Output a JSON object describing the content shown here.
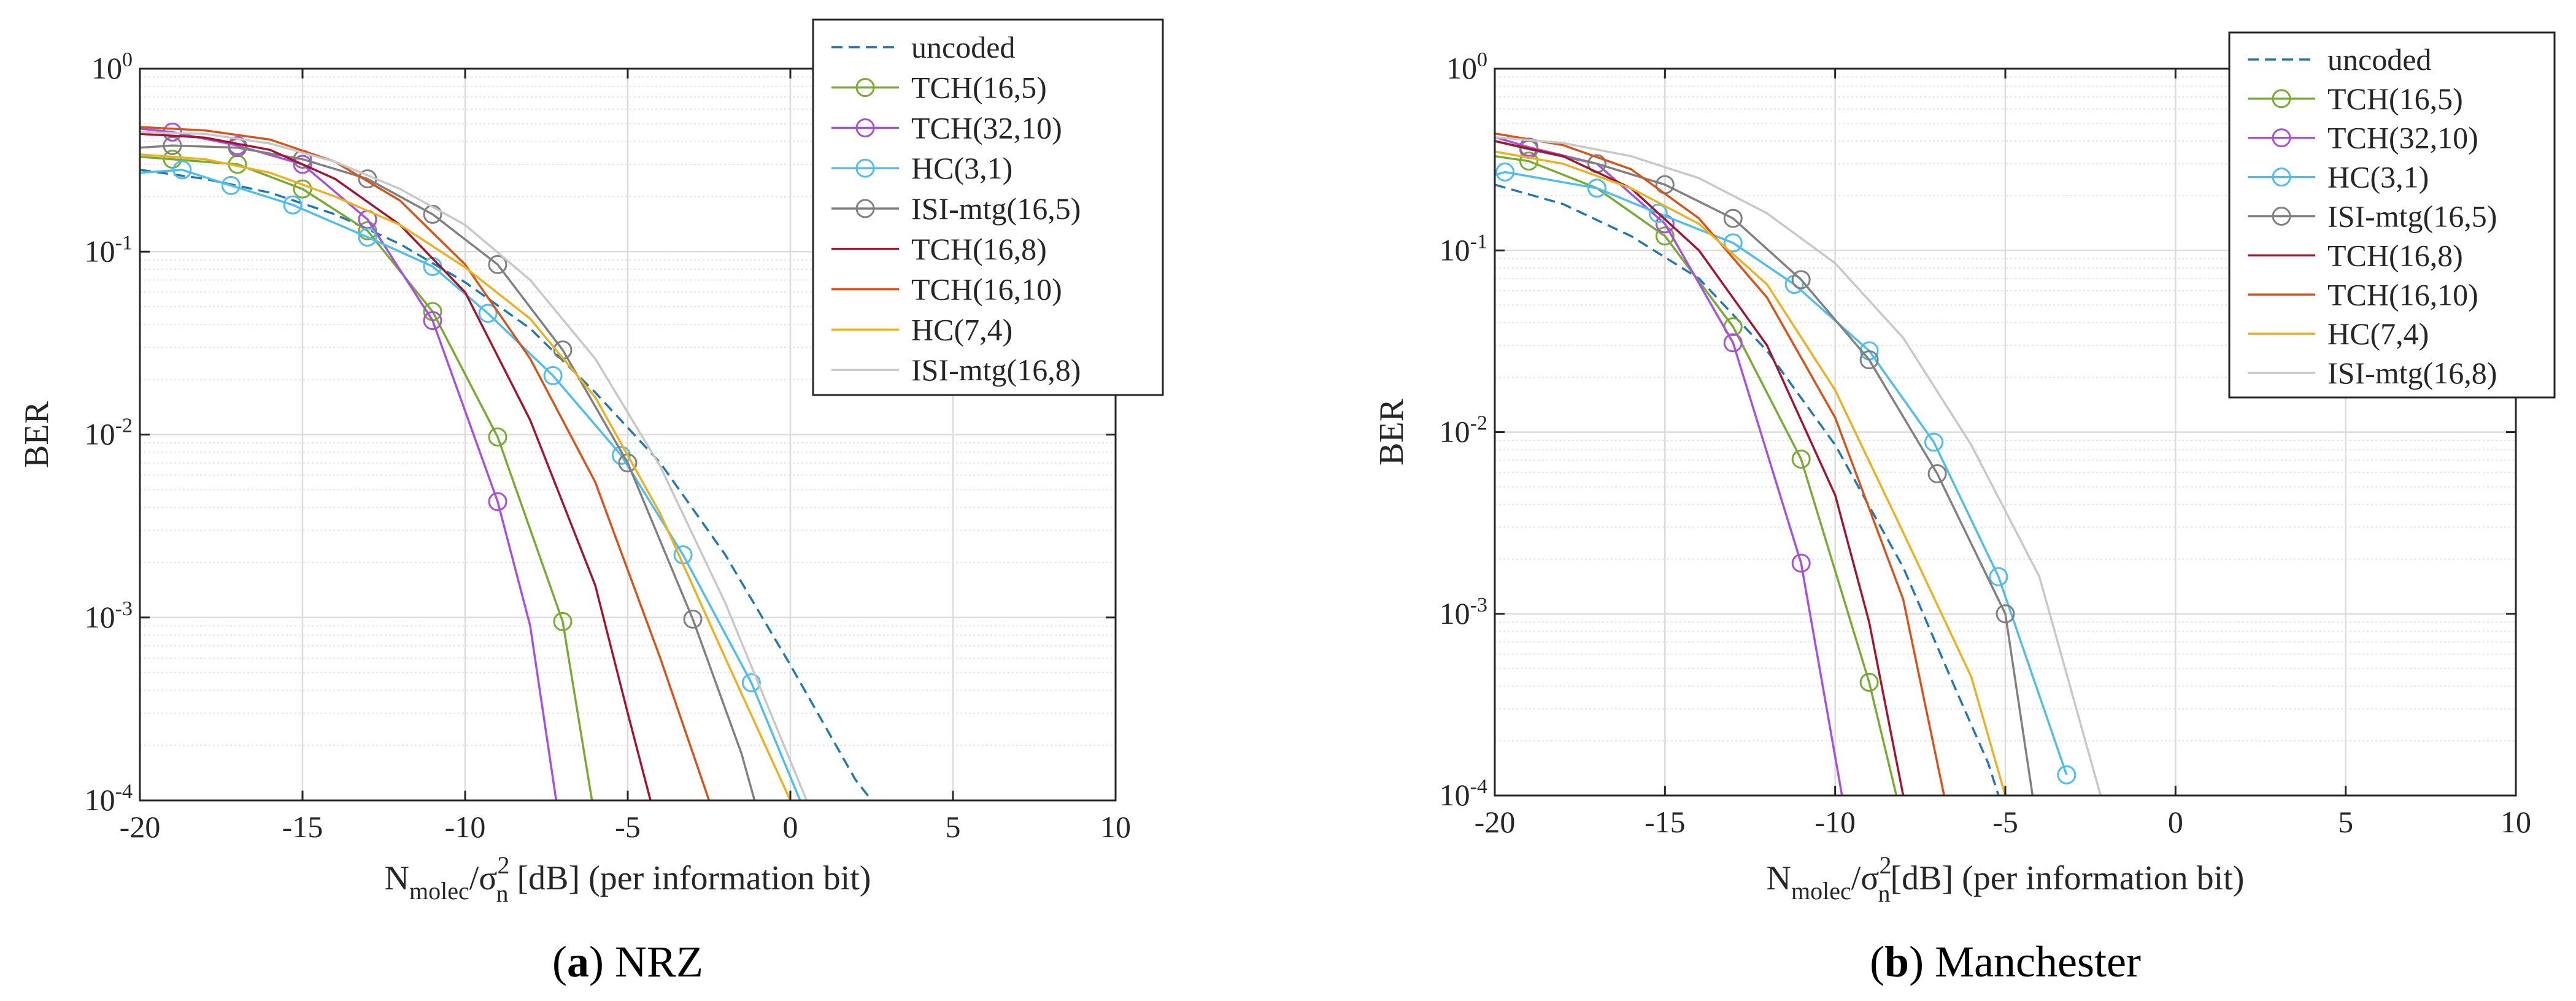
{
  "chart_data": [
    {
      "type": "line",
      "panel_id": "a",
      "caption_letter": "a",
      "caption_text": "NRZ",
      "xlabel_main": "N",
      "xlabel_sub": "molec",
      "xlabel_mid": "/σ",
      "xlabel_sup": "2",
      "xlabel_sub2": "n",
      "xlabel_rest": " [dB] (per information bit)",
      "ylabel": "BER",
      "xlim": [
        -20,
        10
      ],
      "ylim_exp": [
        -4,
        0
      ],
      "xticks": [
        -20,
        -15,
        -10,
        -5,
        0,
        5,
        10
      ],
      "yticks": [
        {
          "base": "10",
          "exp": "0",
          "v": 0
        },
        {
          "base": "10",
          "exp": "-1",
          "v": -1
        },
        {
          "base": "10",
          "exp": "-2",
          "v": -2
        },
        {
          "base": "10",
          "exp": "-3",
          "v": -3
        },
        {
          "base": "10",
          "exp": "-4",
          "v": -4
        }
      ],
      "grid": true,
      "legend_position": "top-right",
      "series": [
        {
          "name": "uncoded",
          "color": "#1f77b4",
          "dash": true,
          "marker": false,
          "x": [
            -20,
            -18,
            -16,
            -14,
            -12,
            -10,
            -8,
            -6,
            -4,
            -2,
            0,
            2,
            2.5
          ],
          "y": [
            0.28,
            0.25,
            0.21,
            0.16,
            0.11,
            0.068,
            0.038,
            0.017,
            0.007,
            0.0022,
            0.00055,
            0.00013,
            0.0001
          ]
        },
        {
          "name": "TCH(16,5)",
          "color": "#77ac30",
          "marker": true,
          "x": [
            -20,
            -19,
            -17,
            -15,
            -13,
            -11,
            -9,
            -7,
            -6.1
          ],
          "y": [
            0.33,
            0.32,
            0.3,
            0.22,
            0.13,
            0.047,
            0.0097,
            0.00095,
            0.0001
          ],
          "mx": [
            -19,
            -17,
            -15,
            -13,
            -11,
            -9,
            -7
          ],
          "my": [
            0.32,
            0.3,
            0.22,
            0.13,
            0.047,
            0.0097,
            0.00095
          ]
        },
        {
          "name": "TCH(32,10)",
          "color": "#a94fe0",
          "marker": true,
          "x": [
            -20,
            -19,
            -17,
            -15,
            -13,
            -11,
            -9,
            -8,
            -7.2
          ],
          "y": [
            0.47,
            0.45,
            0.38,
            0.3,
            0.15,
            0.042,
            0.0043,
            0.0009,
            0.0001
          ],
          "mx": [
            -19,
            -17,
            -15,
            -13,
            -11,
            -9
          ],
          "my": [
            0.45,
            0.38,
            0.3,
            0.15,
            0.042,
            0.0043
          ]
        },
        {
          "name": "HC(3,1)",
          "color": "#4dbeee",
          "marker": true,
          "x": [
            -20,
            -18.7,
            -17.2,
            -15.3,
            -13,
            -11,
            -9.3,
            -7.3,
            -5.2,
            -3.3,
            -1.2,
            0.3
          ],
          "y": [
            0.27,
            0.28,
            0.23,
            0.18,
            0.12,
            0.083,
            0.046,
            0.021,
            0.0077,
            0.0022,
            0.00044,
            0.0001
          ],
          "mx": [
            -18.7,
            -17.2,
            -15.3,
            -13,
            -11,
            -9.3,
            -7.3,
            -5.2,
            -3.3,
            -1.2
          ],
          "my": [
            0.28,
            0.23,
            0.18,
            0.12,
            0.083,
            0.046,
            0.021,
            0.0077,
            0.0022,
            0.00044
          ]
        },
        {
          "name": "ISI-mtg(16,5)",
          "color": "#808080",
          "marker": true,
          "x": [
            -20,
            -19,
            -17,
            -15,
            -13,
            -11,
            -9,
            -7,
            -5,
            -3,
            -1.5,
            -1.1
          ],
          "y": [
            0.37,
            0.38,
            0.37,
            0.32,
            0.25,
            0.16,
            0.085,
            0.029,
            0.007,
            0.00098,
            0.00018,
            0.0001
          ],
          "mx": [
            -19,
            -17,
            -15,
            -13,
            -11,
            -9,
            -7,
            -5,
            -3
          ],
          "my": [
            0.38,
            0.37,
            0.32,
            0.25,
            0.16,
            0.085,
            0.029,
            0.007,
            0.00098
          ]
        },
        {
          "name": "TCH(16,8)",
          "color": "#a2142f",
          "marker": false,
          "x": [
            -20,
            -18,
            -16,
            -14,
            -12,
            -10,
            -8,
            -6,
            -5,
            -4.3
          ],
          "y": [
            0.44,
            0.42,
            0.36,
            0.25,
            0.14,
            0.06,
            0.012,
            0.0015,
            0.0003,
            0.0001
          ]
        },
        {
          "name": "TCH(16,10)",
          "color": "#d95319",
          "marker": false,
          "x": [
            -20,
            -18,
            -16,
            -14,
            -12,
            -10,
            -8,
            -6,
            -4,
            -2.5
          ],
          "y": [
            0.48,
            0.46,
            0.41,
            0.31,
            0.19,
            0.085,
            0.026,
            0.0055,
            0.0006,
            0.0001
          ]
        },
        {
          "name": "HC(7,4)",
          "color": "#edb120",
          "marker": false,
          "x": [
            -20,
            -18,
            -16,
            -14,
            -12,
            -10,
            -8,
            -6,
            -4,
            -2,
            0
          ],
          "y": [
            0.34,
            0.32,
            0.27,
            0.2,
            0.14,
            0.082,
            0.043,
            0.016,
            0.0037,
            0.0006,
            0.0001
          ]
        },
        {
          "name": "ISI-mtg(16,8)",
          "color": "#c8c8c8",
          "marker": false,
          "x": [
            -20,
            -18,
            -16,
            -14,
            -12,
            -10,
            -8,
            -6,
            -4,
            -2,
            0.5
          ],
          "y": [
            0.45,
            0.44,
            0.39,
            0.31,
            0.22,
            0.14,
            0.07,
            0.026,
            0.0067,
            0.0012,
            0.0001
          ]
        }
      ]
    },
    {
      "type": "line",
      "panel_id": "b",
      "caption_letter": "b",
      "caption_text": "Manchester",
      "xlabel_main": "N",
      "xlabel_sub": "molec",
      "xlabel_mid": "/σ",
      "xlabel_sup": "2",
      "xlabel_sub2": "n",
      "xlabel_rest": "[dB] (per information bit)",
      "ylabel": "BER",
      "xlim": [
        -20,
        10
      ],
      "ylim_exp": [
        -4,
        0
      ],
      "xticks": [
        -20,
        -15,
        -10,
        -5,
        0,
        5,
        10
      ],
      "yticks": [
        {
          "base": "10",
          "exp": "0",
          "v": 0
        },
        {
          "base": "10",
          "exp": "-1",
          "v": -1
        },
        {
          "base": "10",
          "exp": "-2",
          "v": -2
        },
        {
          "base": "10",
          "exp": "-3",
          "v": -3
        },
        {
          "base": "10",
          "exp": "-4",
          "v": -4
        }
      ],
      "grid": true,
      "legend_position": "top-right",
      "series": [
        {
          "name": "uncoded",
          "color": "#1f77b4",
          "dash": true,
          "marker": false,
          "x": [
            -20,
            -18,
            -16,
            -14,
            -12,
            -10,
            -8,
            -6.5,
            -5.5,
            -5.2
          ],
          "y": [
            0.23,
            0.18,
            0.12,
            0.07,
            0.028,
            0.0085,
            0.0018,
            0.0004,
            0.00015,
            0.0001
          ]
        },
        {
          "name": "TCH(16,5)",
          "color": "#77ac30",
          "marker": true,
          "x": [
            -20,
            -19,
            -17,
            -15,
            -13,
            -11,
            -9,
            -8.2
          ],
          "y": [
            0.33,
            0.31,
            0.22,
            0.12,
            0.038,
            0.0071,
            0.00042,
            0.0001
          ],
          "mx": [
            -19,
            -17,
            -15,
            -13,
            -11,
            -9
          ],
          "my": [
            0.31,
            0.22,
            0.12,
            0.038,
            0.0071,
            0.00042
          ]
        },
        {
          "name": "TCH(32,10)",
          "color": "#a94fe0",
          "marker": true,
          "x": [
            -20,
            -19,
            -17,
            -15,
            -13,
            -11,
            -9.8
          ],
          "y": [
            0.42,
            0.37,
            0.3,
            0.14,
            0.031,
            0.0019,
            0.0001
          ],
          "mx": [
            -19,
            -17,
            -15,
            -13,
            -11
          ],
          "my": [
            0.37,
            0.3,
            0.14,
            0.031,
            0.0019
          ]
        },
        {
          "name": "HC(3,1)",
          "color": "#4dbeee",
          "marker": true,
          "x": [
            -20,
            -19.7,
            -17,
            -15.2,
            -13,
            -11.2,
            -9,
            -7.1,
            -5.2,
            -3.2
          ],
          "y": [
            0.26,
            0.27,
            0.22,
            0.16,
            0.11,
            0.065,
            0.028,
            0.0088,
            0.0016,
            0.00013
          ],
          "mx": [
            -19.7,
            -17,
            -15.2,
            -13,
            -11.2,
            -9,
            -7.1,
            -5.2,
            -3.2
          ],
          "my": [
            0.27,
            0.22,
            0.16,
            0.11,
            0.065,
            0.028,
            0.0088,
            0.0016,
            0.00013
          ]
        },
        {
          "name": "ISI-mtg(16,5)",
          "color": "#808080",
          "marker": true,
          "x": [
            -20,
            -19,
            -17,
            -15,
            -13,
            -11,
            -9,
            -7,
            -5,
            -4.2
          ],
          "y": [
            0.4,
            0.36,
            0.3,
            0.23,
            0.15,
            0.069,
            0.025,
            0.0059,
            0.001,
            0.0001
          ],
          "mx": [
            -19,
            -17,
            -15,
            -13,
            -11,
            -9,
            -7,
            -5
          ],
          "my": [
            0.36,
            0.3,
            0.23,
            0.15,
            0.069,
            0.025,
            0.0059,
            0.001
          ]
        },
        {
          "name": "TCH(16,8)",
          "color": "#a2142f",
          "marker": false,
          "x": [
            -20,
            -18,
            -16,
            -14,
            -12,
            -10,
            -9,
            -8
          ],
          "y": [
            0.4,
            0.33,
            0.22,
            0.1,
            0.03,
            0.0045,
            0.0009,
            0.0001
          ]
        },
        {
          "name": "TCH(16,10)",
          "color": "#d95319",
          "marker": false,
          "x": [
            -20,
            -18,
            -16,
            -14,
            -12,
            -10,
            -8,
            -6.8
          ],
          "y": [
            0.44,
            0.38,
            0.28,
            0.15,
            0.055,
            0.012,
            0.0012,
            0.0001
          ]
        },
        {
          "name": "HC(7,4)",
          "color": "#edb120",
          "marker": false,
          "x": [
            -20,
            -18,
            -16,
            -14,
            -12,
            -10,
            -8,
            -6,
            -5
          ],
          "y": [
            0.35,
            0.3,
            0.22,
            0.14,
            0.065,
            0.017,
            0.0028,
            0.00045,
            0.0001
          ]
        },
        {
          "name": "ISI-mtg(16,8)",
          "color": "#c8c8c8",
          "marker": false,
          "x": [
            -20,
            -18,
            -16,
            -14,
            -12,
            -10,
            -8,
            -6,
            -4,
            -2.2
          ],
          "y": [
            0.42,
            0.39,
            0.33,
            0.25,
            0.16,
            0.085,
            0.033,
            0.0085,
            0.0016,
            0.0001
          ]
        }
      ]
    }
  ]
}
